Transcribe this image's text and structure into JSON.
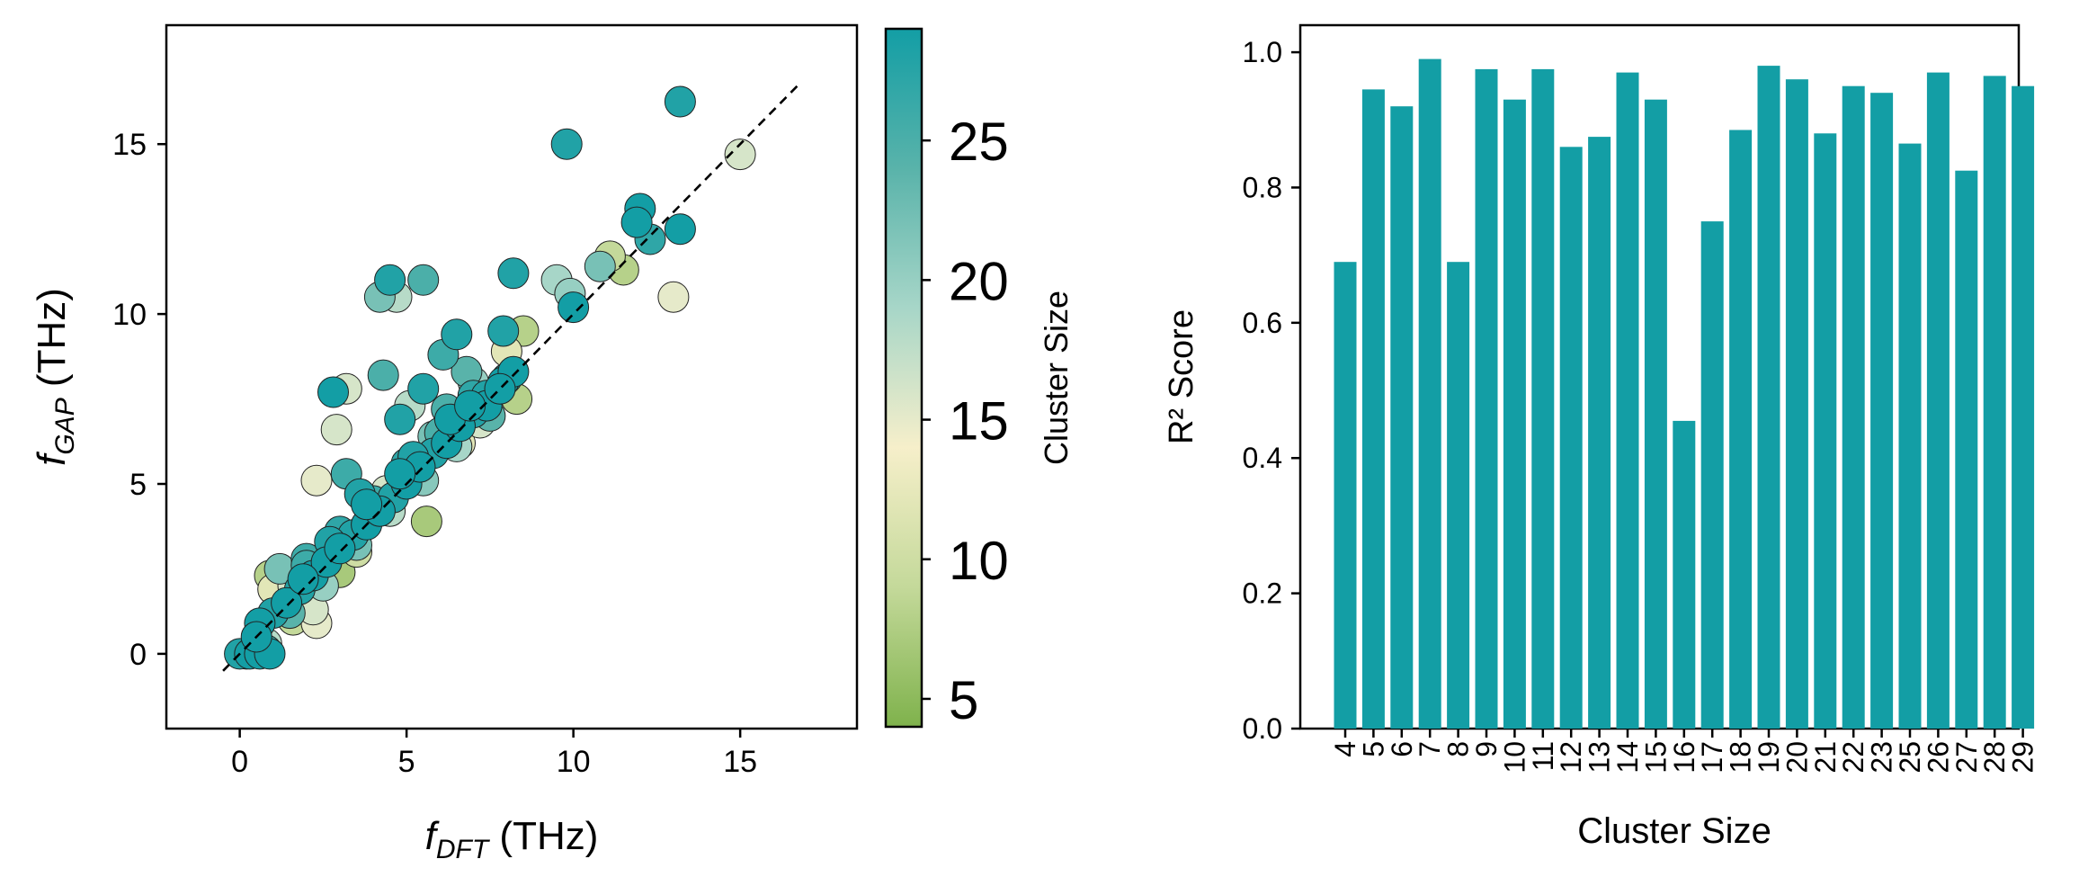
{
  "colors": {
    "bar": "#139ea5",
    "marker_edge": "#222222",
    "identity_line": "#000000",
    "colormap": [
      "#7fb24c",
      "#c4d99a",
      "#f6efca",
      "#a7d6c8",
      "#59b3aa",
      "#139ea5"
    ]
  },
  "chart_data": [
    {
      "type": "scatter",
      "xlabel": {
        "main": "f",
        "sub": "DFT",
        "unit": " (THz)"
      },
      "ylabel": {
        "main": "f",
        "sub": "GAP",
        "unit": " (THz)"
      },
      "xlim": [
        -2.2,
        18.5
      ],
      "ylim": [
        -2.2,
        18.5
      ],
      "xticks": [
        0,
        5,
        10,
        15
      ],
      "yticks": [
        0,
        5,
        10,
        15
      ],
      "identity_line": [
        [
          -0.5,
          -0.5
        ],
        [
          16.8,
          16.8
        ]
      ],
      "colorbar": {
        "label": "Cluster Size",
        "range": [
          4,
          29
        ],
        "ticks": [
          5,
          10,
          15,
          20,
          25
        ]
      },
      "points": [
        [
          15.0,
          14.7,
          16
        ],
        [
          13.2,
          16.25,
          28
        ],
        [
          9.8,
          15.0,
          28
        ],
        [
          12.0,
          13.1,
          29
        ],
        [
          13.2,
          12.5,
          29
        ],
        [
          11.9,
          12.7,
          29
        ],
        [
          12.3,
          12.2,
          27
        ],
        [
          13.0,
          10.5,
          15
        ],
        [
          11.5,
          11.3,
          8
        ],
        [
          11.1,
          11.7,
          9
        ],
        [
          10.8,
          11.4,
          22
        ],
        [
          10.0,
          10.2,
          29
        ],
        [
          9.5,
          11.0,
          19
        ],
        [
          8.2,
          11.2,
          28
        ],
        [
          9.9,
          10.6,
          20
        ],
        [
          4.5,
          11.0,
          28
        ],
        [
          5.5,
          11.0,
          25
        ],
        [
          4.7,
          10.5,
          18
        ],
        [
          4.2,
          10.5,
          22
        ],
        [
          8.5,
          9.5,
          8
        ],
        [
          7.9,
          9.5,
          28
        ],
        [
          6.5,
          9.4,
          28
        ],
        [
          8.0,
          8.9,
          12
        ],
        [
          8.3,
          7.5,
          8
        ],
        [
          6.1,
          8.8,
          26
        ],
        [
          4.3,
          8.2,
          25
        ],
        [
          2.8,
          7.7,
          29
        ],
        [
          3.2,
          7.8,
          16
        ],
        [
          2.9,
          6.6,
          16
        ],
        [
          5.5,
          7.8,
          28
        ],
        [
          7.0,
          8.0,
          20
        ],
        [
          6.8,
          8.3,
          24
        ],
        [
          4.8,
          6.9,
          28
        ],
        [
          3.2,
          5.3,
          26
        ],
        [
          2.3,
          5.1,
          15
        ],
        [
          5.6,
          3.9,
          7
        ],
        [
          4.4,
          4.8,
          16
        ],
        [
          3.6,
          4.7,
          28
        ],
        [
          5.1,
          7.3,
          18
        ],
        [
          6.2,
          7.2,
          25
        ],
        [
          7.4,
          7.6,
          28
        ],
        [
          7.9,
          8.0,
          29
        ],
        [
          8.2,
          8.3,
          29
        ],
        [
          5.8,
          6.4,
          22
        ],
        [
          6.6,
          6.2,
          12
        ],
        [
          7.2,
          6.8,
          16
        ],
        [
          1.0,
          1.9,
          12
        ],
        [
          1.6,
          2.0,
          16
        ],
        [
          1.2,
          2.5,
          22
        ],
        [
          2.0,
          2.8,
          26
        ],
        [
          2.2,
          1.3,
          16
        ],
        [
          2.3,
          0.9,
          15
        ],
        [
          0.8,
          0.3,
          18
        ],
        [
          1.6,
          1.0,
          9
        ],
        [
          0.6,
          0.9,
          29
        ],
        [
          0.9,
          2.3,
          8
        ],
        [
          3.0,
          2.4,
          7
        ],
        [
          3.5,
          3.0,
          10
        ],
        [
          0.3,
          0.0,
          29
        ],
        [
          0.6,
          0.0,
          29
        ],
        [
          0.9,
          0.0,
          29
        ],
        [
          0.2,
          0.0,
          27
        ],
        [
          0.4,
          0.1,
          28
        ],
        [
          0.8,
          0.1,
          26
        ],
        [
          0.0,
          0.0,
          28
        ],
        [
          0.5,
          0.5,
          29
        ],
        [
          1.0,
          1.2,
          28
        ],
        [
          1.4,
          1.5,
          29
        ],
        [
          1.8,
          1.9,
          28
        ],
        [
          2.2,
          2.3,
          29
        ],
        [
          2.6,
          2.7,
          29
        ],
        [
          3.0,
          3.1,
          29
        ],
        [
          3.4,
          3.5,
          28
        ],
        [
          3.8,
          3.8,
          29
        ],
        [
          4.2,
          4.2,
          29
        ],
        [
          4.6,
          4.6,
          28
        ],
        [
          5.0,
          5.0,
          29
        ],
        [
          5.4,
          5.5,
          29
        ],
        [
          5.8,
          5.9,
          28
        ],
        [
          6.2,
          6.2,
          29
        ],
        [
          6.6,
          6.7,
          29
        ],
        [
          7.0,
          7.1,
          28
        ],
        [
          7.4,
          7.3,
          29
        ],
        [
          7.8,
          7.8,
          29
        ],
        [
          8.0,
          8.1,
          28
        ],
        [
          1.5,
          1.2,
          24
        ],
        [
          2.5,
          2.0,
          20
        ],
        [
          3.5,
          3.2,
          22
        ],
        [
          4.5,
          4.2,
          18
        ],
        [
          5.5,
          5.1,
          21
        ],
        [
          6.5,
          6.1,
          19
        ],
        [
          7.5,
          7.0,
          24
        ],
        [
          2.0,
          2.6,
          26
        ],
        [
          3.0,
          3.6,
          27
        ],
        [
          4.0,
          4.5,
          26
        ],
        [
          5.0,
          5.6,
          27
        ],
        [
          6.0,
          6.5,
          25
        ],
        [
          7.0,
          7.6,
          27
        ],
        [
          3.8,
          4.4,
          29
        ],
        [
          4.8,
          5.3,
          29
        ],
        [
          5.2,
          5.8,
          28
        ],
        [
          6.3,
          6.9,
          29
        ],
        [
          2.7,
          3.3,
          28
        ],
        [
          1.9,
          2.2,
          29
        ],
        [
          6.9,
          7.3,
          29
        ]
      ]
    },
    {
      "type": "bar",
      "xlabel": "Cluster Size",
      "ylabel": "R² Score",
      "ylim": [
        0,
        1.04
      ],
      "yticks": [
        "0.0",
        "0.2",
        "0.4",
        "0.6",
        "0.8",
        "1.0"
      ],
      "categories": [
        "4",
        "5",
        "6",
        "7",
        "8",
        "9",
        "10",
        "11",
        "12",
        "13",
        "14",
        "15",
        "16",
        "17",
        "18",
        "19",
        "20",
        "21",
        "22",
        "23",
        "25",
        "26",
        "27",
        "28",
        "29"
      ],
      "values": [
        0.69,
        0.945,
        0.92,
        0.99,
        0.69,
        0.975,
        0.93,
        0.975,
        0.86,
        0.875,
        0.97,
        0.93,
        0.455,
        0.75,
        0.885,
        0.98,
        0.96,
        0.88,
        0.95,
        0.94,
        0.865,
        0.97,
        0.825,
        0.965,
        0.95
      ]
    }
  ]
}
